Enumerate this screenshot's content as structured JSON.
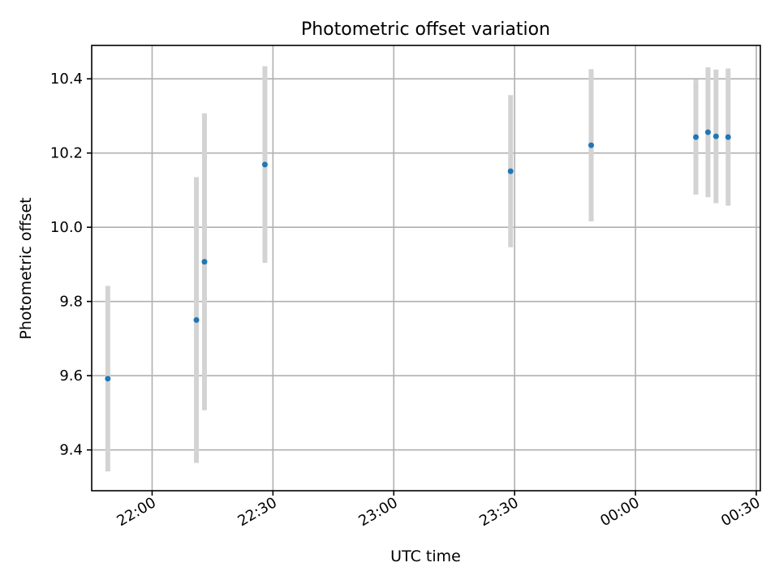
{
  "chart_data": {
    "type": "scatter",
    "title": "Photometric offset variation",
    "xlabel": "UTC time",
    "ylabel": "Photometric offset",
    "x_kind": "time",
    "xlim": [
      "21:45",
      "00:31"
    ],
    "ylim": [
      9.29,
      10.49
    ],
    "x_ticks": [
      "22:00",
      "22:30",
      "23:00",
      "23:30",
      "00:00",
      "00:30"
    ],
    "y_ticks": [
      "9.4",
      "9.6",
      "9.8",
      "10.0",
      "10.2",
      "10.4"
    ],
    "grid": true,
    "series": [
      {
        "marker_color": "#1f77b4",
        "errorbar_color": "#d3d3d3",
        "points": [
          {
            "x": "21:49",
            "y": 9.592,
            "yerr": 0.25
          },
          {
            "x": "22:11",
            "y": 9.75,
            "yerr": 0.385
          },
          {
            "x": "22:13",
            "y": 9.907,
            "yerr": 0.4
          },
          {
            "x": "22:28",
            "y": 10.169,
            "yerr": 0.265
          },
          {
            "x": "23:29",
            "y": 10.151,
            "yerr": 0.205
          },
          {
            "x": "23:49",
            "y": 10.221,
            "yerr": 0.205
          },
          {
            "x": "00:15",
            "y": 10.243,
            "yerr": 0.155
          },
          {
            "x": "00:18",
            "y": 10.256,
            "yerr": 0.175
          },
          {
            "x": "00:20",
            "y": 10.245,
            "yerr": 0.18
          },
          {
            "x": "00:23",
            "y": 10.243,
            "yerr": 0.185
          }
        ]
      }
    ]
  }
}
